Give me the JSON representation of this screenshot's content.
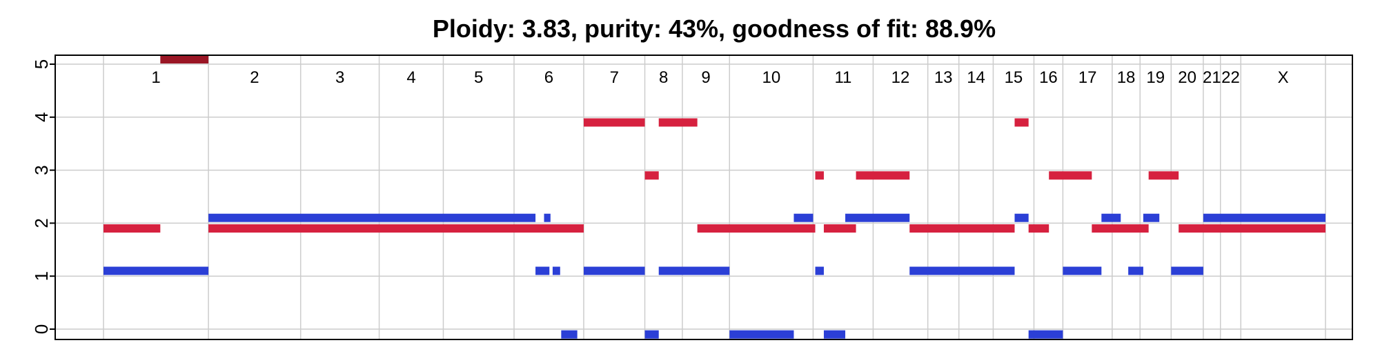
{
  "chart_data": {
    "type": "segment",
    "title": "Ploidy: 3.83, purity: 43%, goodness of fit: 88.9%",
    "xlabel": "",
    "ylabel": "",
    "ylim": [
      0,
      5
    ],
    "yticks": [
      0,
      1,
      2,
      3,
      4,
      5
    ],
    "grid": true,
    "legend": "none",
    "colors": {
      "major": "#d6213f",
      "minor": "#2b3fd6",
      "clipped": "#9a1625",
      "grid": "#cccccc",
      "axis": "#000000"
    },
    "xlim": [
      0,
      1.2
    ],
    "chromosomes": [
      {
        "label": "1",
        "start": 0.0,
        "end": 0.0979
      },
      {
        "label": "2",
        "start": 0.0979,
        "end": 0.1839
      },
      {
        "label": "3",
        "start": 0.1839,
        "end": 0.2572
      },
      {
        "label": "4",
        "start": 0.2572,
        "end": 0.317
      },
      {
        "label": "5",
        "start": 0.317,
        "end": 0.383
      },
      {
        "label": "6",
        "start": 0.383,
        "end": 0.448
      },
      {
        "label": "7",
        "start": 0.448,
        "end": 0.505
      },
      {
        "label": "8",
        "start": 0.505,
        "end": 0.54
      },
      {
        "label": "9",
        "start": 0.54,
        "end": 0.584
      },
      {
        "label": "10",
        "start": 0.584,
        "end": 0.662
      },
      {
        "label": "11",
        "start": 0.662,
        "end": 0.718
      },
      {
        "label": "12",
        "start": 0.718,
        "end": 0.769
      },
      {
        "label": "13",
        "start": 0.769,
        "end": 0.798
      },
      {
        "label": "14",
        "start": 0.798,
        "end": 0.83
      },
      {
        "label": "15",
        "start": 0.83,
        "end": 0.868
      },
      {
        "label": "16",
        "start": 0.868,
        "end": 0.895
      },
      {
        "label": "17",
        "start": 0.895,
        "end": 0.941
      },
      {
        "label": "18",
        "start": 0.941,
        "end": 0.967
      },
      {
        "label": "19",
        "start": 0.967,
        "end": 0.996
      },
      {
        "label": "20",
        "start": 0.996,
        "end": 1.026
      },
      {
        "label": "21",
        "start": 1.026,
        "end": 1.042
      },
      {
        "label": "22",
        "start": 1.042,
        "end": 1.061
      },
      {
        "label": "X",
        "start": 1.061,
        "end": 1.14
      }
    ],
    "series": [
      {
        "kind": "major",
        "segments": [
          {
            "start": 0.0,
            "end": 0.053,
            "cn": 1.9
          },
          {
            "start": 0.053,
            "end": 0.0979,
            "cn": 5.1,
            "clipped": true
          },
          {
            "start": 0.0979,
            "end": 0.448,
            "cn": 1.9
          },
          {
            "start": 0.448,
            "end": 0.505,
            "cn": 3.9
          },
          {
            "start": 0.505,
            "end": 0.518,
            "cn": 2.9
          },
          {
            "start": 0.518,
            "end": 0.554,
            "cn": 3.9
          },
          {
            "start": 0.554,
            "end": 0.664,
            "cn": 1.9
          },
          {
            "start": 0.664,
            "end": 0.672,
            "cn": 2.9
          },
          {
            "start": 0.672,
            "end": 0.702,
            "cn": 1.9
          },
          {
            "start": 0.702,
            "end": 0.752,
            "cn": 2.9
          },
          {
            "start": 0.752,
            "end": 0.85,
            "cn": 1.9
          },
          {
            "start": 0.85,
            "end": 0.863,
            "cn": 3.9
          },
          {
            "start": 0.863,
            "end": 0.882,
            "cn": 1.9
          },
          {
            "start": 0.882,
            "end": 0.922,
            "cn": 2.9
          },
          {
            "start": 0.922,
            "end": 0.975,
            "cn": 1.9
          },
          {
            "start": 0.975,
            "end": 1.003,
            "cn": 2.9
          },
          {
            "start": 1.003,
            "end": 1.14,
            "cn": 1.9
          }
        ]
      },
      {
        "kind": "minor",
        "segments": [
          {
            "start": 0.0,
            "end": 0.0979,
            "cn": 1.1
          },
          {
            "start": 0.0979,
            "end": 0.403,
            "cn": 2.1
          },
          {
            "start": 0.403,
            "end": 0.416,
            "cn": 1.1
          },
          {
            "start": 0.411,
            "end": 0.417,
            "cn": 2.1
          },
          {
            "start": 0.419,
            "end": 0.426,
            "cn": 1.1
          },
          {
            "start": 0.427,
            "end": 0.442,
            "cn": -0.1
          },
          {
            "start": 0.448,
            "end": 0.505,
            "cn": 1.1
          },
          {
            "start": 0.505,
            "end": 0.518,
            "cn": -0.1
          },
          {
            "start": 0.518,
            "end": 0.584,
            "cn": 1.1
          },
          {
            "start": 0.584,
            "end": 0.644,
            "cn": -0.1
          },
          {
            "start": 0.644,
            "end": 0.662,
            "cn": 2.1
          },
          {
            "start": 0.664,
            "end": 0.672,
            "cn": 1.1
          },
          {
            "start": 0.672,
            "end": 0.692,
            "cn": -0.1
          },
          {
            "start": 0.692,
            "end": 0.752,
            "cn": 2.1
          },
          {
            "start": 0.752,
            "end": 0.85,
            "cn": 1.1
          },
          {
            "start": 0.85,
            "end": 0.863,
            "cn": 2.1
          },
          {
            "start": 0.863,
            "end": 0.895,
            "cn": -0.1
          },
          {
            "start": 0.895,
            "end": 0.931,
            "cn": 1.1
          },
          {
            "start": 0.931,
            "end": 0.949,
            "cn": 2.1
          },
          {
            "start": 0.956,
            "end": 0.97,
            "cn": 1.1
          },
          {
            "start": 0.97,
            "end": 0.985,
            "cn": 2.1
          },
          {
            "start": 0.996,
            "end": 1.026,
            "cn": 1.1
          },
          {
            "start": 1.026,
            "end": 1.14,
            "cn": 2.1
          }
        ]
      }
    ]
  }
}
